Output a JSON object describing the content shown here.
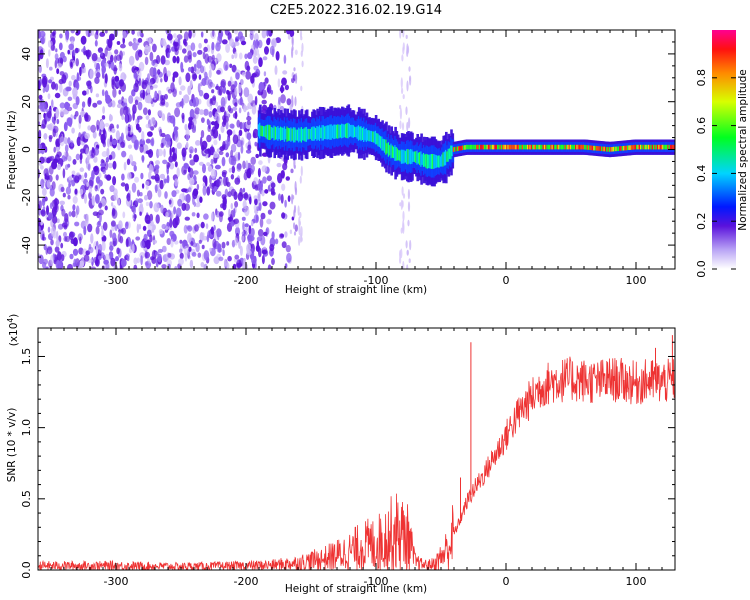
{
  "chart_data": [
    {
      "type": "heatmap",
      "title": "C2E5.2022.316.02.19.G14",
      "xlabel": "Height of straight line (km)",
      "ylabel": "Frequency (Hz)",
      "xlim": [
        -360,
        130
      ],
      "ylim": [
        -50,
        50
      ],
      "xticks": [
        -300,
        -200,
        -100,
        0,
        100
      ],
      "yticks": [
        -40,
        -20,
        0,
        20,
        40
      ],
      "grid": false,
      "colorbar": {
        "label": "Normalized spectral amplitude",
        "range": [
          0.0,
          1.0
        ],
        "ticks": [
          0.0,
          0.2,
          0.4,
          0.6,
          0.8
        ],
        "tick_labels": [
          "0.0",
          "0.2",
          "0.4",
          "0.6",
          "0.8"
        ]
      },
      "signal_track": {
        "x": [
          -190,
          -180,
          -160,
          -140,
          -120,
          -100,
          -90,
          -80,
          -70,
          -60,
          -50,
          -45,
          -40,
          -30,
          -20,
          0,
          20,
          40,
          60,
          80,
          100,
          120,
          130
        ],
        "y": [
          8,
          7,
          6,
          7,
          8,
          5,
          0,
          -3,
          -3,
          -5,
          -5,
          -3,
          0,
          1,
          1,
          1,
          1,
          1,
          1,
          0,
          1,
          1,
          1
        ]
      },
      "noise_region_x": [
        -360,
        -190
      ]
    },
    {
      "type": "line",
      "xlabel": "Height of straight line (km)",
      "ylabel": "SNR (10 * v/v)",
      "y_multiplier": "(x10",
      "y_multiplier_exp": "4",
      "y_multiplier_close": ")",
      "xlim": [
        -360,
        130
      ],
      "ylim": [
        0,
        17000
      ],
      "xticks": [
        -300,
        -200,
        -100,
        0,
        100
      ],
      "yticks": [
        0,
        5000,
        10000,
        15000
      ],
      "ytick_labels": [
        "0.0",
        "0.5",
        "1.0",
        "1.5"
      ],
      "grid": false,
      "series": [
        {
          "color": "#ee3333",
          "x": [
            -360,
            -300,
            -250,
            -200,
            -180,
            -160,
            -140,
            -120,
            -110,
            -100,
            -95,
            -90,
            -85,
            -80,
            -75,
            -70,
            -65,
            -60,
            -55,
            -50,
            -45,
            -40,
            -35,
            -30,
            -25,
            -20,
            -15,
            -10,
            -5,
            0,
            5,
            10,
            15,
            20,
            25,
            30,
            35,
            40,
            50,
            60,
            70,
            80,
            90,
            100,
            110,
            120,
            130
          ],
          "y": [
            300,
            300,
            250,
            300,
            350,
            500,
            800,
            1300,
            1700,
            1800,
            2100,
            2400,
            2700,
            2500,
            2200,
            600,
            400,
            350,
            450,
            900,
            1500,
            2500,
            3600,
            4800,
            5600,
            6300,
            7000,
            7800,
            8600,
            9400,
            10300,
            11000,
            11600,
            12100,
            12700,
            13000,
            13200,
            13300,
            13400,
            13300,
            13200,
            13400,
            13300,
            13100,
            13300,
            13200,
            13300
          ]
        }
      ],
      "spikes": [
        {
          "x": -27,
          "y": 16000
        },
        {
          "x": -35,
          "y": 6500
        },
        {
          "x": 128,
          "y": 16500
        },
        {
          "x": 115,
          "y": 15600
        }
      ]
    }
  ]
}
